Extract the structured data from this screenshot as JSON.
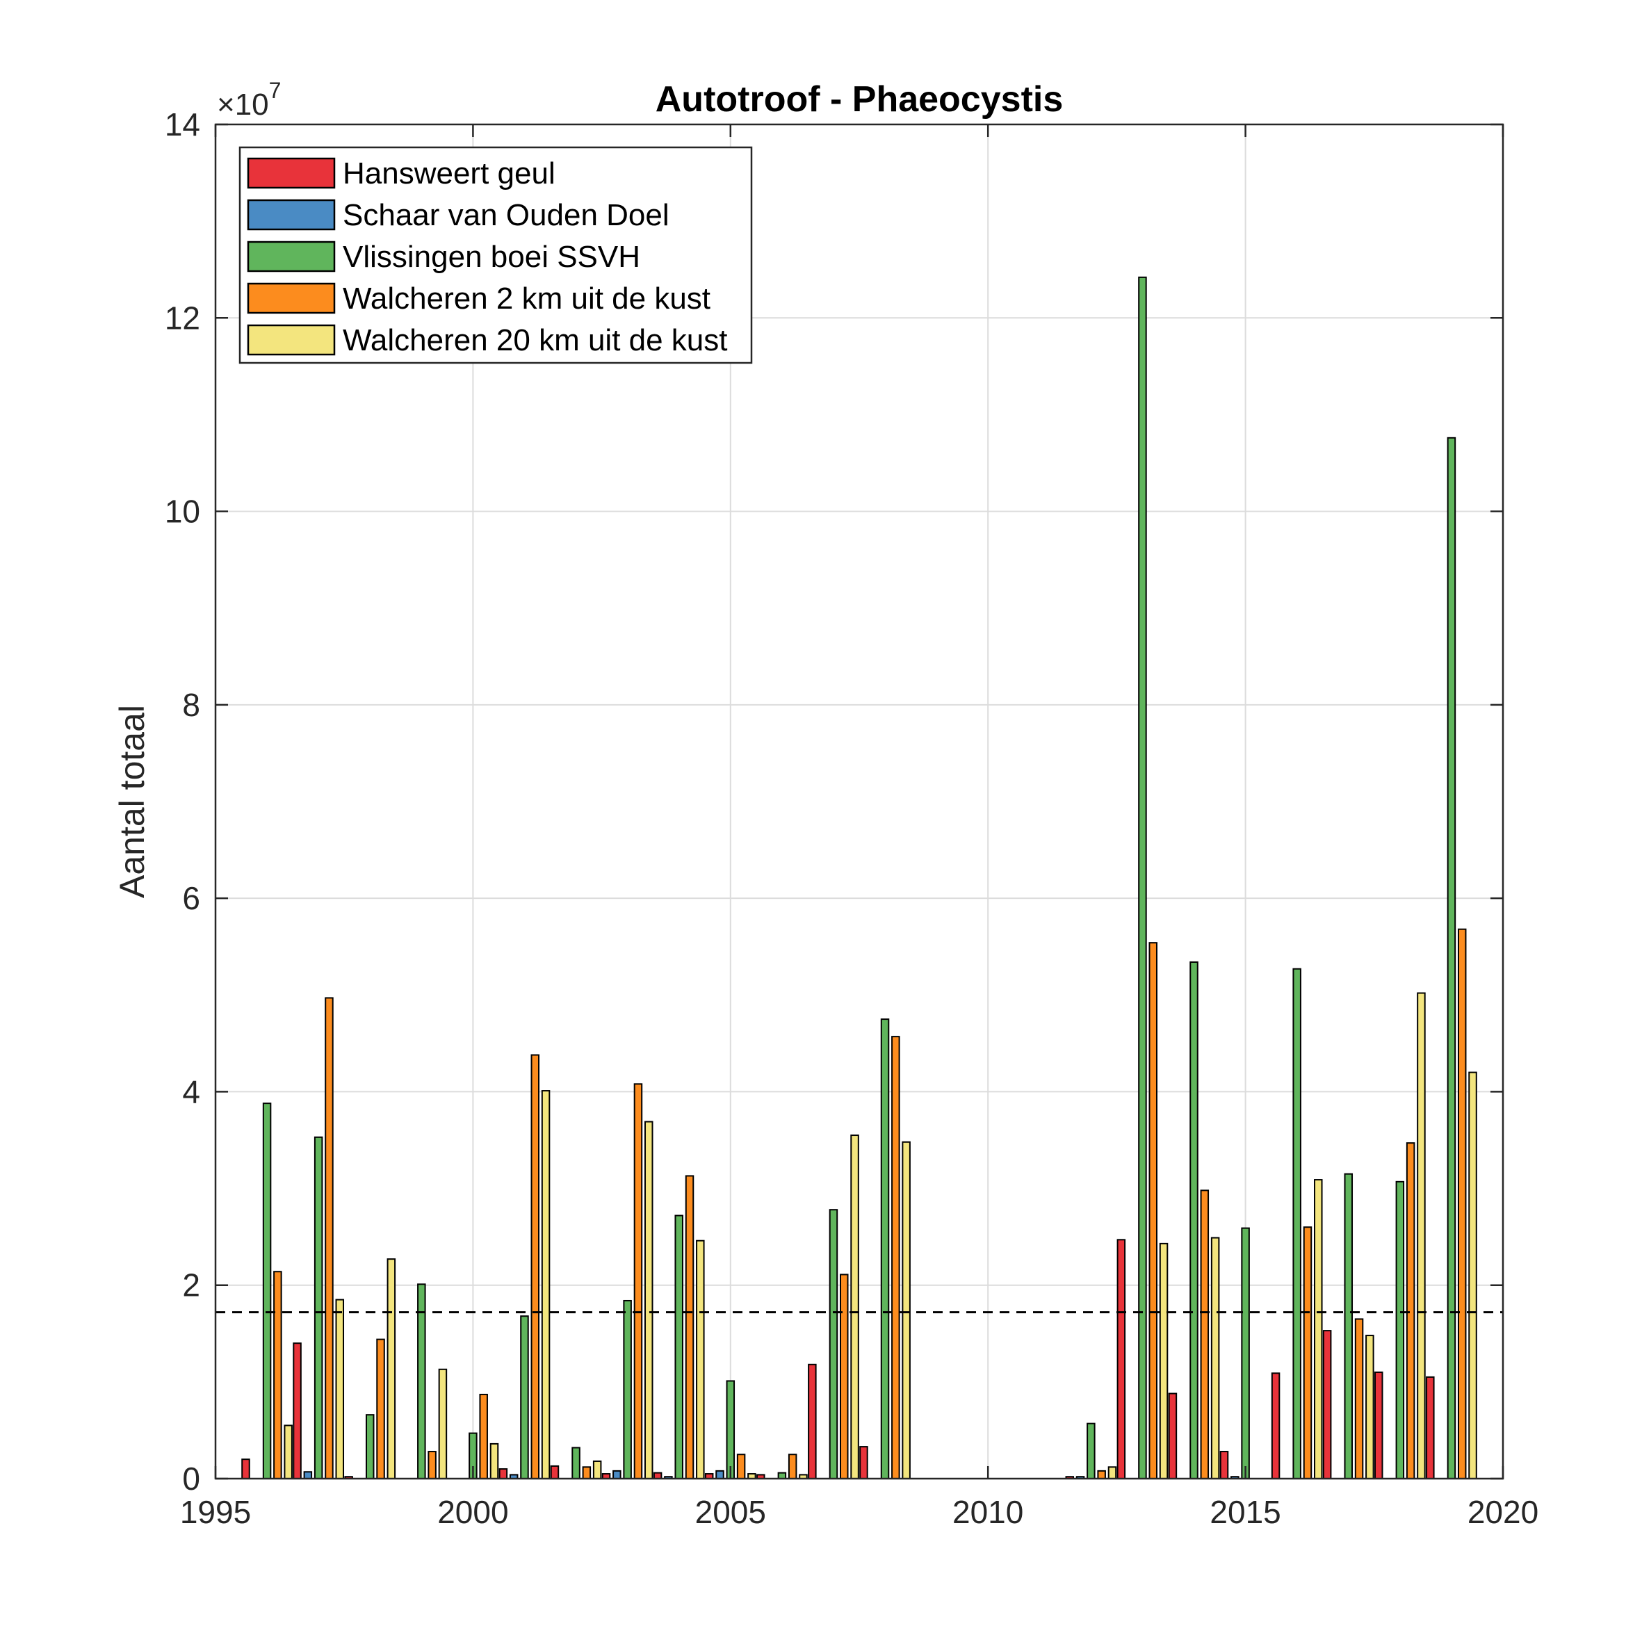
{
  "chart_data": {
    "type": "bar",
    "title": "Autotroof - Phaeocystis",
    "xlabel": "",
    "ylabel": "Aantal totaal",
    "y_exponent": {
      "base": "×10",
      "power": "7"
    },
    "xlim": [
      1995,
      2020
    ],
    "ylim": [
      0,
      14
    ],
    "x_ticks": [
      1995,
      2000,
      2005,
      2010,
      2015,
      2020
    ],
    "y_ticks": [
      0,
      2,
      4,
      6,
      8,
      10,
      12,
      14
    ],
    "grid": true,
    "legend_position": "top-left",
    "threshold_line": {
      "value": 1.72,
      "style": "dashed"
    },
    "categories": [
      1996,
      1997,
      1998,
      1999,
      2000,
      2001,
      2002,
      2003,
      2004,
      2005,
      2006,
      2007,
      2008,
      2009,
      2010,
      2011,
      2012,
      2013,
      2014,
      2015,
      2016,
      2017,
      2018,
      2019
    ],
    "series": [
      {
        "name": "Hansweert geul",
        "color": "#e8333a",
        "values": [
          0.2,
          1.4,
          0.02,
          0,
          0,
          0.1,
          0.13,
          0.05,
          0.06,
          0.05,
          0.04,
          1.18,
          0.33,
          0,
          0,
          0,
          0.02,
          2.47,
          0.88,
          0.28,
          1.09,
          1.53,
          1.1,
          1.05
        ]
      },
      {
        "name": "Schaar van Ouden Doel",
        "color": "#4a8bc4",
        "values": [
          0,
          0.07,
          0,
          0,
          0,
          0.04,
          0,
          0.08,
          0.02,
          0.08,
          0,
          0,
          0,
          0,
          0,
          0,
          0.02,
          0,
          0,
          0.02,
          0,
          0,
          0,
          0
        ]
      },
      {
        "name": "Vlissingen boei SSVH",
        "color": "#60b55c",
        "values": [
          3.88,
          3.53,
          0.66,
          2.01,
          0.47,
          1.68,
          0.32,
          1.84,
          2.72,
          1.01,
          0.06,
          2.78,
          4.75,
          0,
          0,
          0,
          0.57,
          12.42,
          5.34,
          2.59,
          5.27,
          3.15,
          3.07,
          10.76
        ]
      },
      {
        "name": "Walcheren 2 km uit de kust",
        "color": "#fc8c1e",
        "values": [
          2.14,
          4.97,
          1.44,
          0.28,
          0.87,
          4.38,
          0.12,
          4.08,
          3.13,
          0.25,
          0.25,
          2.11,
          4.57,
          0,
          0,
          0,
          0.08,
          5.54,
          2.98,
          0,
          2.6,
          1.65,
          3.47,
          5.68
        ]
      },
      {
        "name": "Walcheren 20 km uit de kust",
        "color": "#f3e57e",
        "values": [
          0.55,
          1.85,
          2.27,
          1.13,
          0.36,
          4.01,
          0.18,
          3.69,
          2.46,
          0.05,
          0.04,
          3.55,
          3.48,
          0,
          0,
          0,
          0.12,
          2.43,
          2.49,
          0,
          3.09,
          1.48,
          5.02,
          4.2
        ]
      }
    ]
  }
}
